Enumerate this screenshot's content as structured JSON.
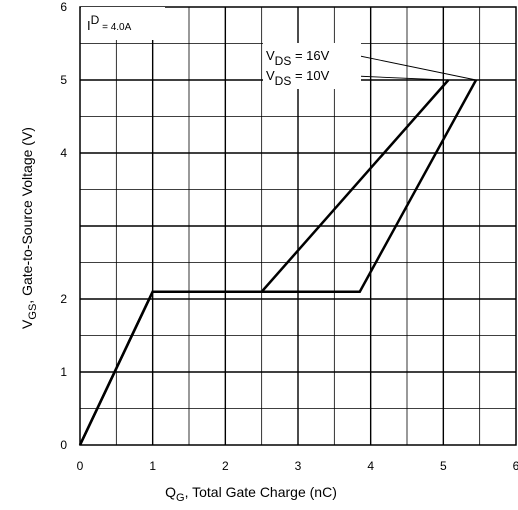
{
  "chart_data": {
    "type": "line",
    "ylabel_main": "V",
    "ylabel_sub": "GS",
    "ylabel_rest": ", Gate-to-Source Voltage (V)",
    "xlabel_main": "Q",
    "xlabel_sub": "G",
    "xlabel_rest": ", Total Gate Charge (nC)",
    "xlim": [
      0,
      6
    ],
    "ylim": [
      0,
      6
    ],
    "x_ticks": [
      "0",
      "1",
      "2",
      "3",
      "4",
      "5",
      "6"
    ],
    "y_ticks": [
      "0",
      "1",
      "2",
      "4",
      "5",
      "6"
    ],
    "grid": true,
    "annotations": [
      {
        "main": "I",
        "sup": "D",
        "rest": " = 4.0A"
      },
      {
        "main": "V",
        "sub": "DS",
        "rest": " = 16V"
      },
      {
        "main": "V",
        "sub": "DS",
        "rest": " = 10V"
      }
    ],
    "series": [
      {
        "name": "V_DS = 16V",
        "x": [
          0,
          1.0,
          3.85,
          5.45
        ],
        "y": [
          0,
          2.1,
          2.1,
          5.0
        ]
      },
      {
        "name": "V_DS = 10V",
        "x": [
          0,
          1.0,
          2.5,
          5.07
        ],
        "y": [
          0,
          2.1,
          2.1,
          5.0
        ]
      }
    ]
  }
}
